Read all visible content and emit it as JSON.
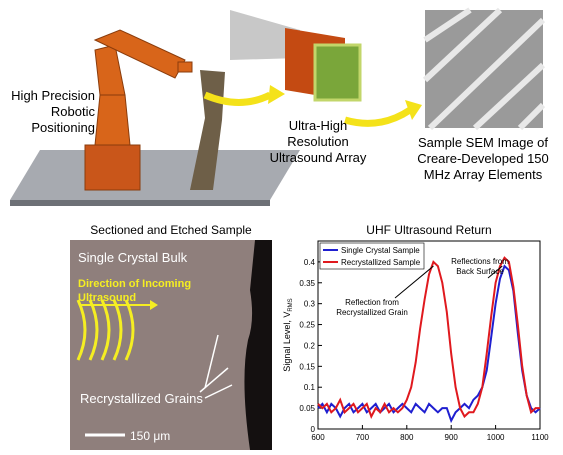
{
  "top": {
    "robot_label": [
      "High Precision",
      "Robotic",
      "Positioning"
    ],
    "array_label": [
      "Ultra-High",
      "Resolution",
      "Ultrasound Array"
    ],
    "sem_label": [
      "Sample SEM Image of",
      "Creare-Developed 150",
      "MHz Array Elements"
    ]
  },
  "micrograph": {
    "title": "Sectioned and Etched Sample",
    "bulk": "Single Crystal Bulk",
    "direction": [
      "Direction of Incoming",
      "Ultrasound"
    ],
    "grains": "Recrystallized Grains",
    "scale": "150 μm"
  },
  "chart_data": {
    "type": "line",
    "title": "UHF Ultrasound Return",
    "y_label": "Signal Level, V",
    "y_label_sub": "RMS",
    "annotations": [
      [
        "Reflection from",
        "Recrystallized Grain"
      ],
      [
        "Reflections from",
        "Back Surface"
      ]
    ],
    "x": [
      600,
      610,
      620,
      630,
      640,
      650,
      660,
      670,
      680,
      690,
      700,
      710,
      720,
      730,
      740,
      750,
      760,
      770,
      780,
      790,
      800,
      810,
      820,
      830,
      840,
      850,
      860,
      870,
      880,
      890,
      900,
      910,
      920,
      930,
      940,
      950,
      960,
      970,
      980,
      990,
      1000,
      1010,
      1020,
      1030,
      1040,
      1050,
      1060,
      1070,
      1080,
      1090,
      1100
    ],
    "series": [
      {
        "name": "Single Crystal Sample",
        "color": "#1f1fd0",
        "values": [
          0.05,
          0.06,
          0.04,
          0.06,
          0.05,
          0.03,
          0.05,
          0.06,
          0.04,
          0.05,
          0.06,
          0.04,
          0.05,
          0.06,
          0.04,
          0.05,
          0.06,
          0.04,
          0.05,
          0.06,
          0.05,
          0.04,
          0.06,
          0.05,
          0.04,
          0.06,
          0.05,
          0.04,
          0.05,
          0.05,
          0.02,
          0.04,
          0.05,
          0.06,
          0.05,
          0.07,
          0.08,
          0.1,
          0.14,
          0.22,
          0.3,
          0.36,
          0.39,
          0.38,
          0.33,
          0.23,
          0.14,
          0.08,
          0.05,
          0.04,
          0.05
        ]
      },
      {
        "name": "Recrystallized Sample",
        "color": "#e0191e",
        "values": [
          0.06,
          0.05,
          0.06,
          0.04,
          0.05,
          0.07,
          0.04,
          0.05,
          0.06,
          0.04,
          0.05,
          0.06,
          0.03,
          0.05,
          0.04,
          0.06,
          0.04,
          0.05,
          0.04,
          0.05,
          0.07,
          0.1,
          0.16,
          0.24,
          0.31,
          0.37,
          0.4,
          0.39,
          0.35,
          0.28,
          0.18,
          0.1,
          0.05,
          0.03,
          0.04,
          0.04,
          0.06,
          0.1,
          0.18,
          0.27,
          0.35,
          0.39,
          0.41,
          0.4,
          0.34,
          0.25,
          0.15,
          0.08,
          0.04,
          0.05,
          0.05
        ]
      }
    ],
    "xlim": [
      600,
      1100
    ],
    "xticks": [
      600,
      700,
      800,
      900,
      1000,
      1100
    ],
    "ylim": [
      0,
      0.45
    ],
    "yticks": [
      0,
      0.05,
      0.1,
      0.15,
      0.2,
      0.25,
      0.3,
      0.35,
      0.4
    ]
  }
}
